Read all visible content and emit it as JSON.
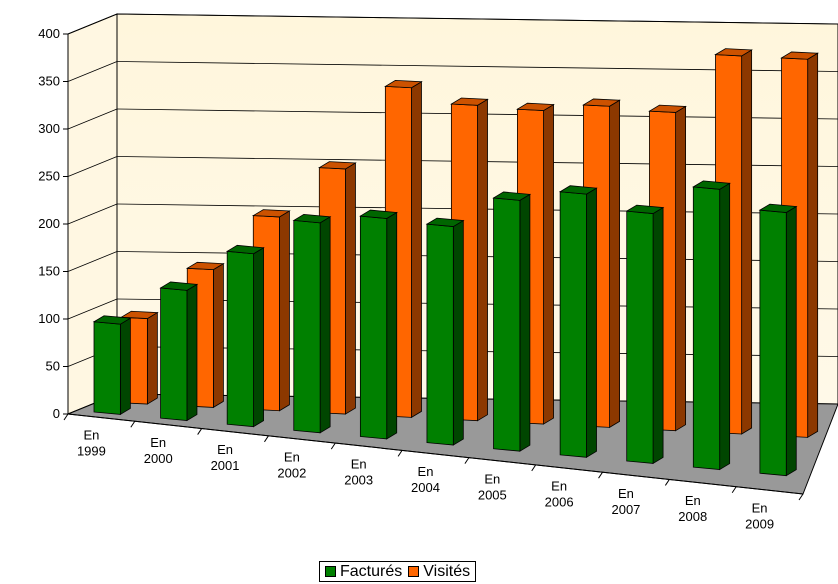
{
  "chart_data": {
    "type": "bar",
    "title": "",
    "xlabel": "",
    "ylabel": "",
    "ylim": [
      0,
      400
    ],
    "yticks": [
      "0",
      "50",
      "100",
      "150",
      "200",
      "250",
      "300",
      "350",
      "400"
    ],
    "categories": [
      [
        "En",
        "1999"
      ],
      [
        "En",
        "2000"
      ],
      [
        "En",
        "2001"
      ],
      [
        "En",
        "2002"
      ],
      [
        "En",
        "2003"
      ],
      [
        "En",
        "2004"
      ],
      [
        "En",
        "2005"
      ],
      [
        "En",
        "2006"
      ],
      [
        "En",
        "2007"
      ],
      [
        "En",
        "2008"
      ],
      [
        "En",
        "2009"
      ]
    ],
    "series": [
      {
        "name": "Facturés",
        "color": "#008000",
        "values": [
          95,
          137,
          182,
          221,
          232,
          230,
          264,
          277,
          263,
          295,
          277
        ]
      },
      {
        "name": "Visités",
        "color": "#FF6600",
        "values": [
          90,
          145,
          204,
          258,
          347,
          332,
          330,
          338,
          335,
          398,
          398
        ]
      }
    ],
    "legend_position": "bottom",
    "grid": true,
    "wall_color": "#FFF8E0",
    "floor_color": "#999999"
  }
}
